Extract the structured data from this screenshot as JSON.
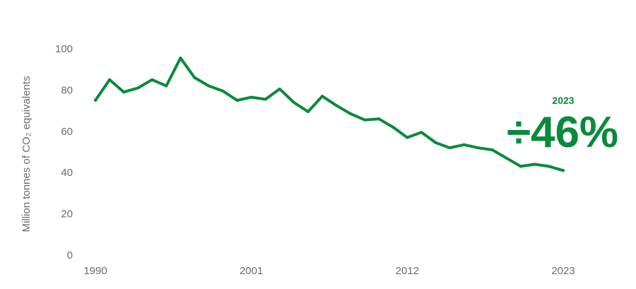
{
  "chart_data": {
    "type": "line",
    "ylabel": "Million tonnes of CO₂ equivalents",
    "ylim": [
      0,
      100
    ],
    "yticks": [
      "0",
      "20",
      "40",
      "60",
      "80",
      "100"
    ],
    "xlim": [
      1990,
      2023
    ],
    "xticks": [
      "1990",
      "2001",
      "2012",
      "2023"
    ],
    "grid": false,
    "line_color": "#0a8a3b",
    "series": [
      {
        "x": [
          1990,
          1991,
          1992,
          1993,
          1994,
          1995,
          1996,
          1997,
          1998,
          1999,
          2000,
          2001,
          2002,
          2003,
          2004,
          2005,
          2006,
          2007,
          2008,
          2009,
          2010,
          2011,
          2012,
          2013,
          2014,
          2015,
          2016,
          2017,
          2018,
          2019,
          2020,
          2021,
          2022,
          2023
        ],
        "values": [
          75,
          85,
          79,
          81,
          85,
          82,
          95.5,
          86,
          82,
          79.5,
          75,
          76.5,
          75.5,
          80.5,
          74,
          69.5,
          77,
          72.5,
          68.5,
          65.5,
          66,
          62,
          57,
          59.5,
          54.5,
          52,
          53.5,
          52,
          51,
          47,
          43,
          44,
          43,
          41
        ]
      }
    ],
    "annotation": {
      "year": "2023",
      "value": "÷46%"
    }
  }
}
